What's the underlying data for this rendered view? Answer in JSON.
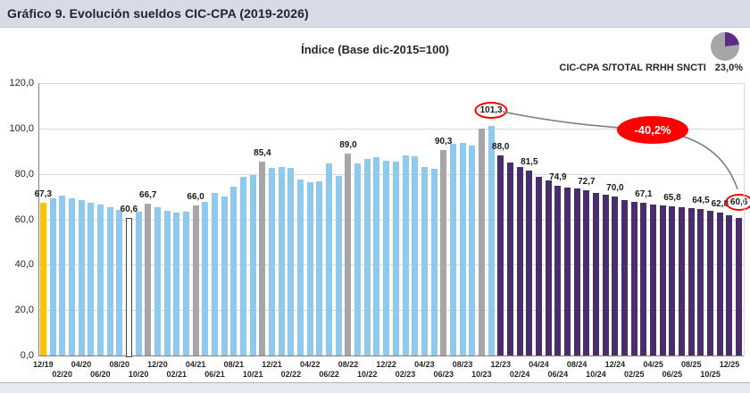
{
  "header": {
    "title": "Gráfico 9. Evolución sueldos CIC-CPA (2019-2026)"
  },
  "legend": {
    "pie_label": "CIC-CPA S/TOTAL RRHH SNCTI",
    "pie_value": "23,0%",
    "pie_pct": 23.0
  },
  "annotations": {
    "drop_label": "-40,2%"
  },
  "colors": {
    "blue": "#8FC9EE",
    "purple": "#4A2D6B",
    "gray": "#A6A6A6",
    "yellow": "#FFC000",
    "outline_fill": "#FFFFFF",
    "outline_border": "#404040",
    "red": "#FF0000",
    "grid": "#D9D9D9",
    "axis": "#808080",
    "curve": "#7F7F7F",
    "pie_gray": "#A6A6A6",
    "pie_purple": "#5B2D87"
  },
  "chart_data": {
    "type": "bar",
    "title": "Índice (Base dic-2015=100)",
    "xlabel": "",
    "ylabel": "",
    "ylim": [
      0,
      120
    ],
    "grid": true,
    "yticks": [
      "0,0",
      "20,0",
      "40,0",
      "60,0",
      "80,0",
      "100,0",
      "120,0"
    ],
    "xticks": [
      "12/19",
      "02/20",
      "04/20",
      "06/20",
      "08/20",
      "10/20",
      "12/20",
      "02/21",
      "04/21",
      "06/21",
      "08/21",
      "10/21",
      "12/21",
      "02/22",
      "04/22",
      "06/22",
      "08/22",
      "10/22",
      "12/22",
      "02/23",
      "04/23",
      "06/23",
      "08/23",
      "10/23",
      "12/23",
      "02/24",
      "04/24",
      "06/24",
      "08/24",
      "10/24",
      "12/24",
      "02/25",
      "04/25",
      "06/25",
      "08/25",
      "10/25",
      "12/25"
    ],
    "series_note": "each point: [month, value, colorKey, dataLabel or null, circledFlag]",
    "series": [
      [
        "12/19",
        67.3,
        "yellow",
        "67,3",
        false
      ],
      [
        "01/20",
        69.3,
        "blue",
        null,
        false
      ],
      [
        "02/20",
        70.4,
        "blue",
        null,
        false
      ],
      [
        "03/20",
        69.2,
        "blue",
        null,
        false
      ],
      [
        "04/20",
        68.3,
        "blue",
        null,
        false
      ],
      [
        "05/20",
        67.4,
        "blue",
        null,
        false
      ],
      [
        "06/20",
        66.3,
        "blue",
        null,
        false
      ],
      [
        "07/20",
        65.4,
        "blue",
        null,
        false
      ],
      [
        "08/20",
        64.3,
        "blue",
        null,
        false
      ],
      [
        "09/20",
        60.6,
        "outline",
        "60,6",
        false
      ],
      [
        "10/20",
        63.2,
        "blue",
        null,
        false
      ],
      [
        "11/20",
        66.7,
        "gray",
        "66,7",
        false
      ],
      [
        "12/20",
        65.4,
        "blue",
        null,
        false
      ],
      [
        "01/21",
        63.8,
        "blue",
        null,
        false
      ],
      [
        "02/21",
        63.0,
        "blue",
        null,
        false
      ],
      [
        "03/21",
        63.4,
        "blue",
        null,
        false
      ],
      [
        "04/21",
        66.0,
        "gray",
        "66,0",
        false
      ],
      [
        "05/21",
        67.5,
        "blue",
        null,
        false
      ],
      [
        "06/21",
        71.5,
        "blue",
        null,
        false
      ],
      [
        "07/21",
        70.2,
        "blue",
        null,
        false
      ],
      [
        "08/21",
        74.2,
        "blue",
        null,
        false
      ],
      [
        "09/21",
        78.8,
        "blue",
        null,
        false
      ],
      [
        "10/21",
        79.3,
        "blue",
        null,
        false
      ],
      [
        "11/21",
        85.4,
        "gray",
        "85,4",
        false
      ],
      [
        "12/21",
        82.6,
        "blue",
        null,
        false
      ],
      [
        "01/22",
        82.9,
        "blue",
        null,
        false
      ],
      [
        "02/22",
        82.5,
        "blue",
        null,
        false
      ],
      [
        "03/22",
        77.6,
        "blue",
        null,
        false
      ],
      [
        "04/22",
        76.2,
        "blue",
        null,
        false
      ],
      [
        "05/22",
        76.6,
        "blue",
        null,
        false
      ],
      [
        "06/22",
        84.6,
        "blue",
        null,
        false
      ],
      [
        "07/22",
        79.0,
        "blue",
        null,
        false
      ],
      [
        "08/22",
        89.0,
        "gray",
        "89,0",
        false
      ],
      [
        "09/22",
        84.6,
        "blue",
        null,
        false
      ],
      [
        "10/22",
        86.6,
        "blue",
        null,
        false
      ],
      [
        "11/22",
        87.5,
        "blue",
        null,
        false
      ],
      [
        "12/22",
        85.9,
        "blue",
        null,
        false
      ],
      [
        "01/23",
        85.4,
        "blue",
        null,
        false
      ],
      [
        "02/23",
        88.0,
        "blue",
        null,
        false
      ],
      [
        "03/23",
        87.8,
        "blue",
        null,
        false
      ],
      [
        "04/23",
        83.0,
        "blue",
        null,
        false
      ],
      [
        "05/23",
        82.4,
        "blue",
        null,
        false
      ],
      [
        "06/23",
        90.3,
        "gray",
        "90,3",
        false
      ],
      [
        "07/23",
        93.4,
        "blue",
        null,
        false
      ],
      [
        "08/23",
        93.8,
        "blue",
        null,
        false
      ],
      [
        "09/23",
        92.4,
        "blue",
        null,
        false
      ],
      [
        "10/23",
        100.0,
        "gray",
        null,
        false
      ],
      [
        "11/23",
        101.3,
        "blue",
        "101,3",
        true
      ],
      [
        "12/23",
        88.0,
        "purple",
        "88,0",
        false
      ],
      [
        "01/24",
        84.8,
        "purple",
        null,
        false
      ],
      [
        "02/24",
        83.2,
        "purple",
        null,
        false
      ],
      [
        "03/24",
        81.5,
        "purple",
        "81,5",
        false
      ],
      [
        "04/24",
        78.6,
        "purple",
        null,
        false
      ],
      [
        "05/24",
        77.1,
        "purple",
        null,
        false
      ],
      [
        "06/24",
        74.9,
        "purple",
        "74,9",
        false
      ],
      [
        "07/24",
        74.1,
        "purple",
        null,
        false
      ],
      [
        "08/24",
        73.4,
        "purple",
        null,
        false
      ],
      [
        "09/24",
        72.7,
        "purple",
        "72,7",
        false
      ],
      [
        "10/24",
        71.6,
        "purple",
        null,
        false
      ],
      [
        "11/24",
        70.8,
        "purple",
        null,
        false
      ],
      [
        "12/24",
        70.0,
        "purple",
        "70,0",
        false
      ],
      [
        "01/25",
        68.6,
        "purple",
        null,
        false
      ],
      [
        "02/25",
        67.8,
        "purple",
        null,
        false
      ],
      [
        "03/25",
        67.1,
        "purple",
        "67,1",
        false
      ],
      [
        "04/25",
        66.6,
        "purple",
        null,
        false
      ],
      [
        "05/25",
        66.2,
        "purple",
        null,
        false
      ],
      [
        "06/25",
        65.8,
        "purple",
        "65,8",
        false
      ],
      [
        "07/25",
        65.3,
        "purple",
        null,
        false
      ],
      [
        "08/25",
        65.0,
        "purple",
        null,
        false
      ],
      [
        "09/25",
        64.5,
        "purple",
        "64,5",
        false
      ],
      [
        "10/25",
        63.9,
        "purple",
        null,
        false
      ],
      [
        "11/25",
        62.8,
        "purple",
        "62,8",
        false
      ],
      [
        "12/25",
        61.6,
        "purple",
        null,
        false
      ],
      [
        "01/26",
        60.6,
        "purple",
        "60,6",
        true
      ]
    ],
    "annotation": {
      "drop_label": "-40,2%",
      "from_label": "101,3",
      "to_label": "60,6"
    },
    "legend_position": "top-right"
  }
}
